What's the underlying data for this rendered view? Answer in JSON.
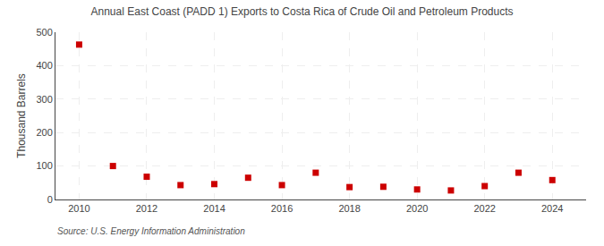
{
  "chart_data": {
    "type": "scatter",
    "title": "Annual East Coast (PADD 1) Exports to Costa Rica of Crude Oil and Petroleum Products",
    "y_label": "Thousand Barrels",
    "annotations": [
      "Source: U.S. Energy Information Administration"
    ],
    "x": [
      2010,
      2011,
      2012,
      2013,
      2014,
      2015,
      2016,
      2017,
      2018,
      2019,
      2020,
      2021,
      2022,
      2023,
      2024
    ],
    "values": [
      463,
      100,
      68,
      43,
      46,
      65,
      43,
      80,
      37,
      38,
      30,
      27,
      40,
      80,
      58
    ],
    "color": "#cc0000",
    "marker": "square",
    "xlim": [
      2009.3,
      2025.0
    ],
    "xticks": [
      2010,
      2012,
      2014,
      2016,
      2018,
      2020,
      2022,
      2024
    ],
    "ylim": [
      0,
      500
    ],
    "yticks": [
      0,
      100,
      200,
      300,
      400,
      500
    ],
    "grid": true
  }
}
